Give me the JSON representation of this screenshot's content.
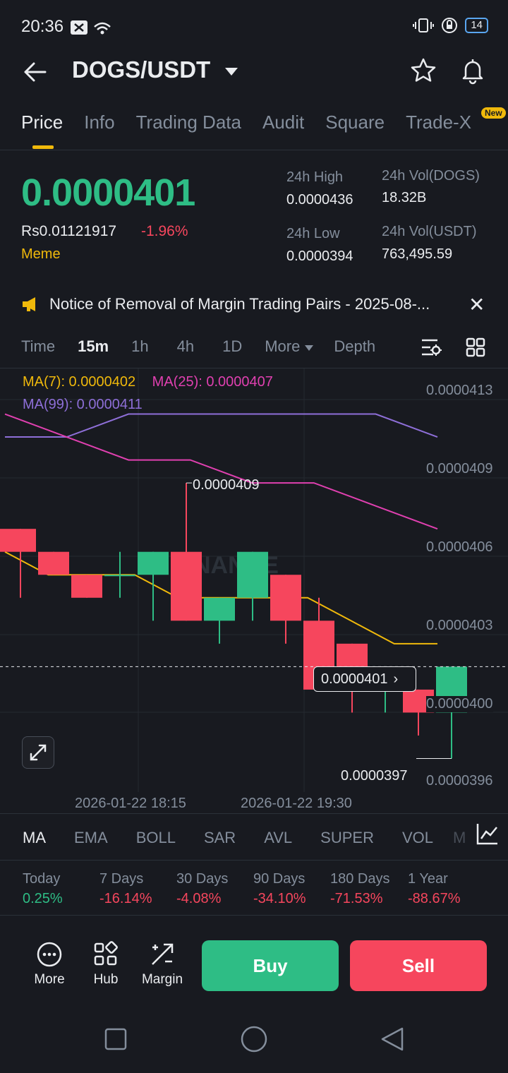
{
  "status": {
    "time": "20:36",
    "battery": "14"
  },
  "header": {
    "pair": "DOGS/USDT"
  },
  "tabs": [
    "Price",
    "Info",
    "Trading Data",
    "Audit",
    "Square",
    "Trade-X"
  ],
  "new_badge": "New",
  "ticker": {
    "last_price": "0.0000401",
    "fiat_price": "Rs0.01121917",
    "change": "-1.96%",
    "tag": "Meme",
    "high_label": "24h High",
    "high_value": "0.0000436",
    "low_label": "24h Low",
    "low_value": "0.0000394",
    "vol_base_label": "24h Vol(DOGS)",
    "vol_base_value": "18.32B",
    "vol_quote_label": "24h Vol(USDT)",
    "vol_quote_value": "763,495.59"
  },
  "notice": {
    "text": "Notice of Removal of Margin Trading Pairs - 2025-08-..."
  },
  "intervals": {
    "time": "Time",
    "m15": "15m",
    "h1": "1h",
    "h4": "4h",
    "d1": "1D",
    "more": "More",
    "depth": "Depth"
  },
  "chart_data": {
    "type": "candlestick",
    "interval": "15m",
    "legend": [
      "MA(7): 0.0000402",
      "MA(25): 0.0000407",
      "MA(99): 0.0000411"
    ],
    "watermark": "BINANCE",
    "y_ticks": [
      "0.0000413",
      "0.0000409",
      "0.0000406",
      "0.0000403",
      "0.0000400",
      "0.0000396"
    ],
    "ylim": [
      3.96e-05,
      4.13e-05
    ],
    "x_ticks": [
      "2026-01-22 18:15",
      "2026-01-22 19:30"
    ],
    "last_price_label": "0.0000401",
    "high_marker": "0.0000409",
    "low_marker": "0.0000397",
    "candles": [
      {
        "o": 4.07e-05,
        "h": 4.07e-05,
        "l": 4.04e-05,
        "c": 4.06e-05
      },
      {
        "o": 4.06e-05,
        "h": 4.06e-05,
        "l": 4.05e-05,
        "c": 4.05e-05
      },
      {
        "o": 4.05e-05,
        "h": 4.05e-05,
        "l": 4.04e-05,
        "c": 4.04e-05
      },
      {
        "o": 4.05e-05,
        "h": 4.06e-05,
        "l": 4.04e-05,
        "c": 4.05e-05
      },
      {
        "o": 4.05e-05,
        "h": 4.06e-05,
        "l": 4.03e-05,
        "c": 4.06e-05
      },
      {
        "o": 4.06e-05,
        "h": 4.09e-05,
        "l": 4.03e-05,
        "c": 4.03e-05
      },
      {
        "o": 4.03e-05,
        "h": 4.04e-05,
        "l": 4.02e-05,
        "c": 4.04e-05
      },
      {
        "o": 4.04e-05,
        "h": 4.06e-05,
        "l": 4.03e-05,
        "c": 4.06e-05
      },
      {
        "o": 4.05e-05,
        "h": 4.05e-05,
        "l": 4.02e-05,
        "c": 4.03e-05
      },
      {
        "o": 4.03e-05,
        "h": 4.04e-05,
        "l": 4e-05,
        "c": 4e-05
      },
      {
        "o": 4.02e-05,
        "h": 4.02e-05,
        "l": 3.99e-05,
        "c": 4e-05
      },
      {
        "o": 4e-05,
        "h": 4.01e-05,
        "l": 3.99e-05,
        "c": 4e-05
      },
      {
        "o": 4e-05,
        "h": 4e-05,
        "l": 3.98e-05,
        "c": 3.99e-05
      },
      {
        "o": 3.99e-05,
        "h": 4.01e-05,
        "l": 3.97e-05,
        "c": 4.01e-05
      }
    ],
    "ma7": [
      4.06e-05,
      4.05e-05,
      4.05e-05,
      4.05e-05,
      4.04e-05,
      4.04e-05,
      4.04e-05,
      4.04e-05,
      4.03e-05,
      4.02e-05,
      4.02e-05
    ],
    "ma25": [
      4.12e-05,
      4.11e-05,
      4.1e-05,
      4.1e-05,
      4.09e-05,
      4.09e-05,
      4.08e-05,
      4.07e-05
    ],
    "ma99": [
      4.11e-05,
      4.11e-05,
      4.12e-05,
      4.12e-05,
      4.12e-05,
      4.12e-05,
      4.12e-05,
      4.11e-05
    ]
  },
  "indicators": [
    "MA",
    "EMA",
    "BOLL",
    "SAR",
    "AVL",
    "SUPER",
    "VOL",
    "M"
  ],
  "performance": [
    {
      "label": "Today",
      "value": "0.25%",
      "dir": "pos"
    },
    {
      "label": "7 Days",
      "value": "-16.14%",
      "dir": "neg"
    },
    {
      "label": "30 Days",
      "value": "-4.08%",
      "dir": "neg"
    },
    {
      "label": "90 Days",
      "value": "-34.10%",
      "dir": "neg"
    },
    {
      "label": "180 Days",
      "value": "-71.53%",
      "dir": "neg"
    },
    {
      "label": "1 Year",
      "value": "-88.67%",
      "dir": "neg"
    }
  ],
  "bottom": {
    "more": "More",
    "hub": "Hub",
    "margin": "Margin",
    "buy": "Buy",
    "sell": "Sell"
  },
  "colors": {
    "up": "#2ebd85",
    "down": "#f6465d",
    "accent": "#f0b90b",
    "bg": "#181a20"
  }
}
